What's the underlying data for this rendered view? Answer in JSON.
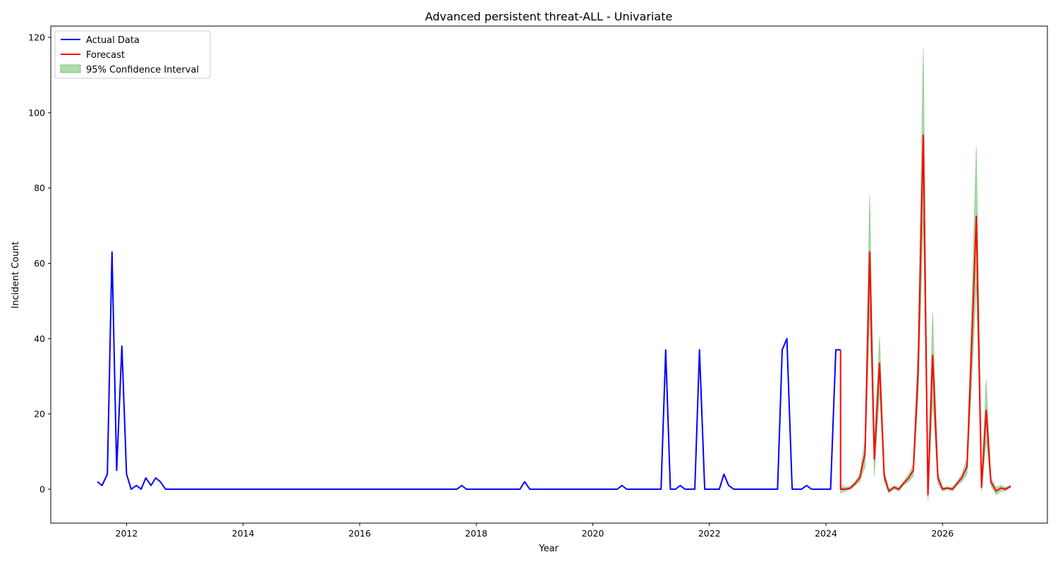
{
  "chart_data": {
    "type": "line",
    "title": "Advanced persistent threat-ALL - Univariate",
    "xlabel": "Year",
    "ylabel": "Incident Count",
    "xlim": [
      2010.7,
      2027.8
    ],
    "ylim": [
      -9,
      123
    ],
    "x_ticks": [
      2012,
      2014,
      2016,
      2018,
      2020,
      2022,
      2024,
      2026
    ],
    "y_ticks": [
      0,
      20,
      40,
      60,
      80,
      100,
      120
    ],
    "grid": false,
    "legend_position": "top-left",
    "legend": [
      "Actual Data",
      "Forecast",
      "95% Confidence Interval"
    ],
    "colors": {
      "actual": "#0000ff",
      "forecast": "#ff0000",
      "ci": "#2ca02c"
    },
    "series": [
      {
        "name": "Actual Data",
        "points": [
          [
            2011.5,
            2
          ],
          [
            2011.58,
            1
          ],
          [
            2011.67,
            4
          ],
          [
            2011.75,
            63
          ],
          [
            2011.83,
            5
          ],
          [
            2011.92,
            38
          ],
          [
            2012.0,
            4
          ],
          [
            2012.08,
            0
          ],
          [
            2012.17,
            1
          ],
          [
            2012.25,
            0
          ],
          [
            2012.33,
            3
          ],
          [
            2012.42,
            1
          ],
          [
            2012.5,
            3
          ],
          [
            2012.58,
            2
          ],
          [
            2012.67,
            0
          ],
          [
            2017.67,
            0
          ],
          [
            2017.75,
            1
          ],
          [
            2017.83,
            0
          ],
          [
            2018.75,
            0
          ],
          [
            2018.83,
            2
          ],
          [
            2018.92,
            0
          ],
          [
            2020.42,
            0
          ],
          [
            2020.5,
            1
          ],
          [
            2020.58,
            0
          ],
          [
            2021.17,
            0
          ],
          [
            2021.25,
            37
          ],
          [
            2021.33,
            0
          ],
          [
            2021.42,
            0
          ],
          [
            2021.5,
            1
          ],
          [
            2021.58,
            0
          ],
          [
            2021.75,
            0
          ],
          [
            2021.83,
            37
          ],
          [
            2021.92,
            0
          ],
          [
            2022.17,
            0
          ],
          [
            2022.25,
            4
          ],
          [
            2022.33,
            1
          ],
          [
            2022.42,
            0
          ],
          [
            2023.17,
            0
          ],
          [
            2023.25,
            37
          ],
          [
            2023.33,
            40
          ],
          [
            2023.42,
            0
          ],
          [
            2023.58,
            0
          ],
          [
            2023.67,
            1
          ],
          [
            2023.75,
            0
          ],
          [
            2024.08,
            0
          ],
          [
            2024.17,
            37
          ],
          [
            2024.25,
            37
          ]
        ]
      },
      {
        "name": "Forecast",
        "points": [
          [
            2024.25,
            37
          ],
          [
            2024.25,
            0
          ],
          [
            2024.33,
            0
          ],
          [
            2024.42,
            0.3
          ],
          [
            2024.5,
            1.5
          ],
          [
            2024.58,
            3
          ],
          [
            2024.67,
            9.5
          ],
          [
            2024.75,
            63
          ],
          [
            2024.83,
            8
          ],
          [
            2024.92,
            33.5
          ],
          [
            2025.0,
            3.5
          ],
          [
            2025.08,
            -0.5
          ],
          [
            2025.17,
            0.5
          ],
          [
            2025.25,
            0
          ],
          [
            2025.33,
            1.5
          ],
          [
            2025.42,
            3
          ],
          [
            2025.5,
            5
          ],
          [
            2025.58,
            31
          ],
          [
            2025.67,
            94
          ],
          [
            2025.75,
            -1.5
          ],
          [
            2025.83,
            35.5
          ],
          [
            2025.92,
            3
          ],
          [
            2026.0,
            0
          ],
          [
            2026.08,
            0.3
          ],
          [
            2026.17,
            0
          ],
          [
            2026.25,
            1.5
          ],
          [
            2026.33,
            3
          ],
          [
            2026.42,
            6
          ],
          [
            2026.5,
            38
          ],
          [
            2026.58,
            72.5
          ],
          [
            2026.67,
            0.5
          ],
          [
            2026.75,
            21
          ],
          [
            2026.83,
            2
          ],
          [
            2026.92,
            -0.5
          ],
          [
            2027.0,
            0.3
          ],
          [
            2027.08,
            0
          ],
          [
            2027.17,
            0.8
          ]
        ]
      }
    ],
    "confidence_interval": {
      "name": "95% Confidence Interval",
      "lower": [
        [
          2024.25,
          -1
        ],
        [
          2024.33,
          -0.5
        ],
        [
          2024.42,
          0
        ],
        [
          2024.5,
          1
        ],
        [
          2024.58,
          2
        ],
        [
          2024.67,
          6
        ],
        [
          2024.75,
          48
        ],
        [
          2024.83,
          3.5
        ],
        [
          2024.92,
          26
        ],
        [
          2025.0,
          2
        ],
        [
          2025.08,
          -1
        ],
        [
          2025.17,
          0
        ],
        [
          2025.25,
          -0.5
        ],
        [
          2025.33,
          1
        ],
        [
          2025.42,
          2
        ],
        [
          2025.5,
          3.5
        ],
        [
          2025.58,
          24
        ],
        [
          2025.67,
          72
        ],
        [
          2025.75,
          -3
        ],
        [
          2025.83,
          24
        ],
        [
          2025.92,
          1.5
        ],
        [
          2026.0,
          -0.5
        ],
        [
          2026.08,
          0
        ],
        [
          2026.17,
          -0.5
        ],
        [
          2026.25,
          1
        ],
        [
          2026.33,
          2
        ],
        [
          2026.42,
          4
        ],
        [
          2026.5,
          28
        ],
        [
          2026.58,
          55
        ],
        [
          2026.67,
          -0.5
        ],
        [
          2026.75,
          13
        ],
        [
          2026.83,
          1
        ],
        [
          2026.92,
          -1.5
        ],
        [
          2027.0,
          -0.5
        ],
        [
          2027.08,
          -0.5
        ],
        [
          2027.17,
          0.5
        ]
      ],
      "upper": [
        [
          2024.25,
          1
        ],
        [
          2024.33,
          0.5
        ],
        [
          2024.42,
          0.8
        ],
        [
          2024.5,
          2
        ],
        [
          2024.58,
          4
        ],
        [
          2024.67,
          13
        ],
        [
          2024.75,
          78
        ],
        [
          2024.83,
          12.5
        ],
        [
          2024.92,
          40.5
        ],
        [
          2025.0,
          5
        ],
        [
          2025.08,
          0
        ],
        [
          2025.17,
          1
        ],
        [
          2025.25,
          0.5
        ],
        [
          2025.33,
          2
        ],
        [
          2025.42,
          4
        ],
        [
          2025.5,
          6.5
        ],
        [
          2025.58,
          38
        ],
        [
          2025.67,
          117
        ],
        [
          2025.75,
          0
        ],
        [
          2025.83,
          47
        ],
        [
          2025.92,
          4.5
        ],
        [
          2026.0,
          0.5
        ],
        [
          2026.08,
          0.6
        ],
        [
          2026.17,
          0.5
        ],
        [
          2026.25,
          2
        ],
        [
          2026.33,
          4
        ],
        [
          2026.42,
          8
        ],
        [
          2026.5,
          48
        ],
        [
          2026.58,
          91
        ],
        [
          2026.67,
          1.5
        ],
        [
          2026.75,
          29
        ],
        [
          2026.83,
          3
        ],
        [
          2026.92,
          0.5
        ],
        [
          2027.0,
          1
        ],
        [
          2027.08,
          0.5
        ],
        [
          2027.17,
          1
        ]
      ]
    }
  }
}
